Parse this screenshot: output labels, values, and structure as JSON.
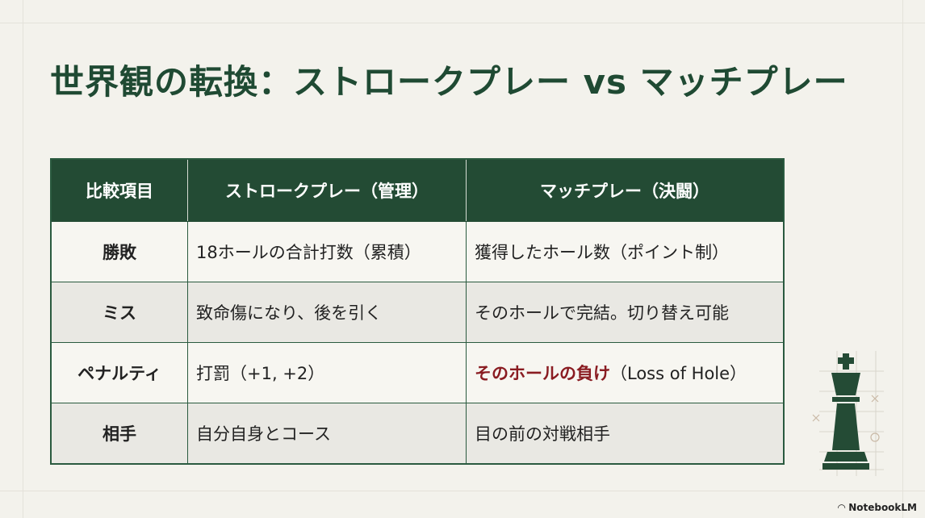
{
  "title": "世界観の転換：ストロークプレー vs マッチプレー",
  "table": {
    "headers": [
      "比較項目",
      "ストロークプレー（管理）",
      "マッチプレー（決闘）"
    ],
    "rows": [
      {
        "item": "勝敗",
        "stroke": "18ホールの合計打数（累積）",
        "match": "獲得したホール数（ポイント制）"
      },
      {
        "item": "ミス",
        "stroke": "致命傷になり、後を引く",
        "match": "そのホールで完結。切り替え可能"
      },
      {
        "item": "ペナルティ",
        "stroke": "打罰（+1, +2）",
        "match_emph": "そのホールの負け",
        "match": "（Loss of Hole）"
      },
      {
        "item": "相手",
        "stroke": "自分自身とコース",
        "match": "目の前の対戦相手"
      }
    ]
  },
  "brand": "NotebookLM",
  "colors": {
    "primary": "#234b34",
    "emphasis": "#8a1c22",
    "background": "#f3f2ec"
  }
}
